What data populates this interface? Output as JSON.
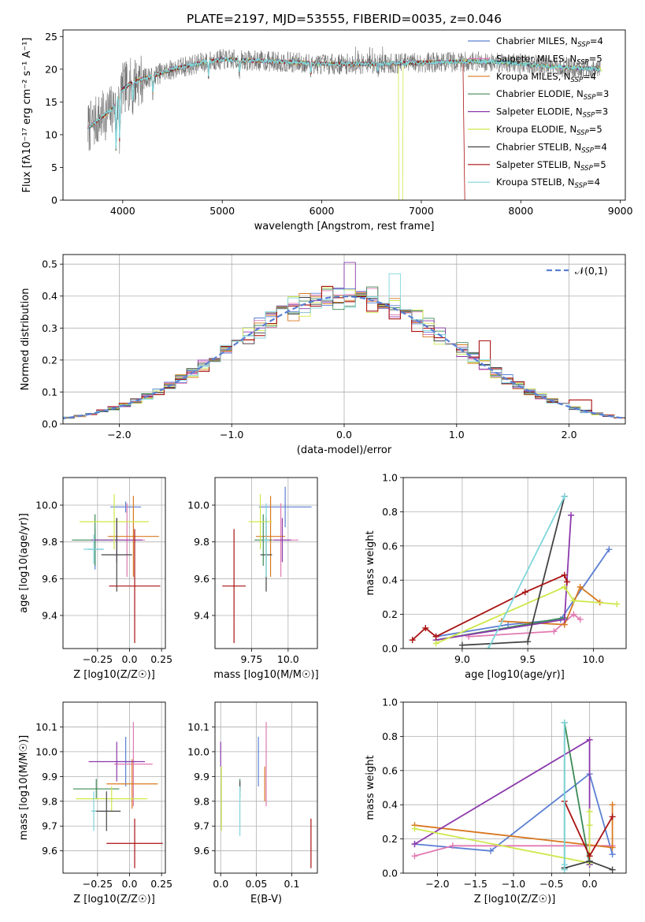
{
  "figure": {
    "title": "PLATE=2197, MJD=53555, FIBERID=0035, z=0.046"
  },
  "chart_data": [
    {
      "id": "spectrum",
      "type": "line",
      "xlabel": "wavelength [Angstrom, rest frame]",
      "ylabel": "Flux [fλ10⁻¹⁷ erg cm⁻² s⁻¹ A⁻¹]",
      "xlim": [
        3400,
        9050
      ],
      "ylim": [
        0,
        26
      ],
      "xticks": [
        4000,
        5000,
        6000,
        7000,
        8000,
        9000
      ],
      "yticks": [
        0,
        5,
        10,
        15,
        20,
        25
      ],
      "grid": false,
      "legend_position": "right",
      "series": [
        {
          "name": "Chabrier MILES, N_SSP=4",
          "color": "#5b7fd3"
        },
        {
          "name": "Salpeter MILES, N_SSP=5",
          "color": "#e07ab2"
        },
        {
          "name": "Kroupa MILES, N_SSP=4",
          "color": "#d87820"
        },
        {
          "name": "Chabrier ELODIE, N_SSP=3",
          "color": "#3c8a55"
        },
        {
          "name": "Salpeter ELODIE, N_SSP=3",
          "color": "#8c3aab"
        },
        {
          "name": "Kroupa ELODIE, N_SSP=5",
          "color": "#cde84b"
        },
        {
          "name": "Chabrier STELIB, N_SSP=4",
          "color": "#444444"
        },
        {
          "name": "Salpeter STELIB, N_SSP=5",
          "color": "#aa1111"
        },
        {
          "name": "Kroupa STELIB, N_SSP=4",
          "color": "#7fd6dc"
        }
      ],
      "continuum": {
        "x": [
          3650,
          3900,
          4000,
          4100,
          4300,
          4500,
          4800,
          5000,
          5500,
          6000,
          6500,
          7000,
          7500,
          7900,
          8300,
          8800
        ],
        "y": [
          11,
          14,
          17,
          18,
          19,
          20,
          21,
          21.5,
          21.2,
          20.8,
          20.8,
          21,
          21.2,
          21,
          20.4,
          20
        ]
      }
    },
    {
      "id": "residuals",
      "type": "histogram",
      "xlabel": "(data-model)/error",
      "ylabel": "Normed distribution",
      "xlim": [
        -2.5,
        2.5
      ],
      "ylim": [
        0,
        0.53
      ],
      "xticks": [
        -2,
        -1,
        0,
        1,
        2
      ],
      "yticks": [
        0.0,
        0.1,
        0.2,
        0.3,
        0.4,
        0.5
      ],
      "grid": true,
      "legend_position": "top-right",
      "legend_label": "𝒩(0,1)",
      "bin_width": 0.1
    },
    {
      "id": "age-vs-Z",
      "type": "scatter",
      "xlabel": "Z [log10(Z/Z☉)]",
      "ylabel": "age  [log10(age/yr)]",
      "xlim": [
        -0.52,
        0.28
      ],
      "ylim": [
        9.22,
        10.15
      ],
      "xticks": [
        -0.25,
        0.0,
        0.25
      ],
      "yticks": [
        9.4,
        9.6,
        9.8,
        10.0
      ],
      "grid": true,
      "points": [
        {
          "x": -0.27,
          "y": 9.76,
          "xerr": 0.06,
          "yerr": 0.11,
          "color": "#5b7fd3"
        },
        {
          "x": -0.03,
          "y": 9.99,
          "xerr": 0.12,
          "yerr": 0.03,
          "color": "#5b7fd3"
        },
        {
          "x": -0.02,
          "y": 9.81,
          "xerr": 0.14,
          "yerr": 0.2,
          "color": "#e07ab2"
        },
        {
          "x": 0.03,
          "y": 9.83,
          "xerr": 0.2,
          "yerr": 0.22,
          "color": "#d87820"
        },
        {
          "x": -0.27,
          "y": 9.81,
          "xerr": 0.18,
          "yerr": 0.14,
          "color": "#3c8a55"
        },
        {
          "x": -0.1,
          "y": 9.81,
          "xerr": 0.2,
          "yerr": 0.12,
          "color": "#8c3aab"
        },
        {
          "x": -0.12,
          "y": 9.91,
          "xerr": 0.27,
          "yerr": 0.15,
          "color": "#cde84b"
        },
        {
          "x": -0.1,
          "y": 9.73,
          "xerr": 0.12,
          "yerr": 0.2,
          "color": "#444444"
        },
        {
          "x": 0.04,
          "y": 9.56,
          "xerr": 0.2,
          "yerr": 0.31,
          "color": "#aa1111"
        },
        {
          "x": -0.28,
          "y": 9.76,
          "xerr": 0.08,
          "yerr": 0.08,
          "color": "#7fd6dc"
        }
      ]
    },
    {
      "id": "age-vs-mass",
      "type": "scatter",
      "xlabel": "mass [log10(M/M☉)]",
      "ylabel": "",
      "xlim": [
        9.5,
        10.2
      ],
      "ylim": [
        9.22,
        10.15
      ],
      "xticks": [
        9.75,
        10.0
      ],
      "yticks": [
        9.4,
        9.6,
        9.8,
        10.0
      ],
      "grid": true,
      "points": [
        {
          "x": 9.98,
          "y": 9.99,
          "xerr": 0.18,
          "yerr": 0.11,
          "color": "#5b7fd3"
        },
        {
          "x": 9.95,
          "y": 9.81,
          "xerr": 0.12,
          "yerr": 0.2,
          "color": "#e07ab2"
        },
        {
          "x": 9.88,
          "y": 9.83,
          "xerr": 0.1,
          "yerr": 0.22,
          "color": "#d87820"
        },
        {
          "x": 9.83,
          "y": 9.81,
          "xerr": 0.06,
          "yerr": 0.14,
          "color": "#3c8a55"
        },
        {
          "x": 9.96,
          "y": 9.81,
          "xerr": 0.06,
          "yerr": 0.12,
          "color": "#8c3aab"
        },
        {
          "x": 9.81,
          "y": 9.91,
          "xerr": 0.08,
          "yerr": 0.15,
          "color": "#cde84b"
        },
        {
          "x": 9.85,
          "y": 9.73,
          "xerr": 0.04,
          "yerr": 0.2,
          "color": "#444444"
        },
        {
          "x": 9.63,
          "y": 9.56,
          "xerr": 0.08,
          "yerr": 0.31,
          "color": "#aa1111"
        },
        {
          "x": 9.85,
          "y": 9.81,
          "xerr": 0.02,
          "yerr": 0.2,
          "color": "#7fd6dc"
        }
      ]
    },
    {
      "id": "massweight-vs-age",
      "type": "line",
      "xlabel": "age  [log10(age/yr)]",
      "ylabel": "mass weight",
      "xlim": [
        8.55,
        10.25
      ],
      "ylim": [
        0,
        1.0
      ],
      "xticks": [
        9.0,
        9.5,
        10.0
      ],
      "yticks": [
        0.0,
        0.2,
        0.4,
        0.6,
        0.8,
        1.0
      ],
      "grid": true,
      "series": [
        {
          "color": "#5b7fd3",
          "x": [
            8.8,
            9.35,
            9.75,
            10.12
          ],
          "y": [
            0.07,
            0.14,
            0.17,
            0.58
          ]
        },
        {
          "color": "#e07ab2",
          "x": [
            9.05,
            9.7,
            9.85,
            9.9
          ],
          "y": [
            0.07,
            0.1,
            0.2,
            0.17
          ]
        },
        {
          "color": "#d87820",
          "x": [
            9.3,
            9.78,
            9.9,
            10.05
          ],
          "y": [
            0.16,
            0.14,
            0.36,
            0.27
          ]
        },
        {
          "color": "#3c8a55",
          "x": [
            8.8,
            9.78
          ],
          "y": [
            0.05,
            0.18
          ]
        },
        {
          "color": "#8c3aab",
          "x": [
            8.8,
            9.78,
            9.83
          ],
          "y": [
            0.05,
            0.17,
            0.78
          ]
        },
        {
          "color": "#cde84b",
          "x": [
            8.8,
            9.78,
            9.85,
            10.18
          ],
          "y": [
            0.03,
            0.36,
            0.28,
            0.26
          ]
        },
        {
          "color": "#444444",
          "x": [
            9.0,
            9.5,
            9.78
          ],
          "y": [
            0.02,
            0.04,
            0.89
          ]
        },
        {
          "color": "#aa1111",
          "x": [
            8.62,
            8.72,
            8.8,
            9.48,
            9.78,
            9.8
          ],
          "y": [
            0.05,
            0.12,
            0.07,
            0.33,
            0.43,
            0.39
          ]
        },
        {
          "color": "#7fd6dc",
          "x": [
            9.2,
            9.78
          ],
          "y": [
            0.0,
            0.89
          ]
        }
      ]
    },
    {
      "id": "mass-vs-Z",
      "type": "scatter",
      "xlabel": "Z [log10(Z/Z☉)]",
      "ylabel": "mass [log10(M/M☉)]",
      "xlim": [
        -0.52,
        0.28
      ],
      "ylim": [
        9.51,
        10.2
      ],
      "xticks": [
        -0.25,
        0.0,
        0.25
      ],
      "yticks": [
        9.6,
        9.7,
        9.8,
        9.9,
        10.0,
        10.1
      ],
      "grid": true,
      "points": [
        {
          "x": -0.03,
          "y": 9.96,
          "xerr": 0.08,
          "yerr": 0.1,
          "color": "#5b7fd3"
        },
        {
          "x": 0.03,
          "y": 9.95,
          "xerr": 0.15,
          "yerr": 0.17,
          "color": "#e07ab2"
        },
        {
          "x": 0.02,
          "y": 9.87,
          "xerr": 0.2,
          "yerr": 0.1,
          "color": "#d87820"
        },
        {
          "x": -0.26,
          "y": 9.85,
          "xerr": 0.18,
          "yerr": 0.04,
          "color": "#3c8a55"
        },
        {
          "x": -0.1,
          "y": 9.96,
          "xerr": 0.22,
          "yerr": 0.08,
          "color": "#8c3aab"
        },
        {
          "x": -0.14,
          "y": 9.81,
          "xerr": 0.28,
          "yerr": 0.05,
          "color": "#cde84b"
        },
        {
          "x": -0.18,
          "y": 9.76,
          "xerr": 0.11,
          "yerr": 0.08,
          "color": "#444444"
        },
        {
          "x": 0.04,
          "y": 9.63,
          "xerr": 0.22,
          "yerr": 0.1,
          "color": "#aa1111"
        },
        {
          "x": -0.28,
          "y": 9.76,
          "xerr": 0.02,
          "yerr": 0.08,
          "color": "#7fd6dc"
        }
      ]
    },
    {
      "id": "mass-vs-EBV",
      "type": "scatter",
      "xlabel": "E(B-V)",
      "ylabel": "",
      "xlim": [
        -0.008,
        0.136
      ],
      "ylim": [
        9.51,
        10.2
      ],
      "xticks": [
        0.0,
        0.05,
        0.1
      ],
      "yticks": [
        9.6,
        9.7,
        9.8,
        9.9,
        10.0,
        10.1
      ],
      "grid": true,
      "points": [
        {
          "x": 0.053,
          "y": 9.96,
          "xerr": 0,
          "yerr": 0.1,
          "color": "#5b7fd3"
        },
        {
          "x": 0.064,
          "y": 9.95,
          "xerr": 0,
          "yerr": 0.17,
          "color": "#e07ab2"
        },
        {
          "x": 0.062,
          "y": 9.87,
          "xerr": 0,
          "yerr": 0.07,
          "color": "#d87820"
        },
        {
          "x": 0.027,
          "y": 9.85,
          "xerr": 0,
          "yerr": 0.04,
          "color": "#3c8a55"
        },
        {
          "x": 0.0,
          "y": 9.99,
          "xerr": 0,
          "yerr": 0.05,
          "color": "#8c3aab"
        },
        {
          "x": 0.001,
          "y": 9.81,
          "xerr": 0,
          "yerr": 0.13,
          "color": "#cde84b"
        },
        {
          "x": 0.027,
          "y": 9.86,
          "xerr": 0,
          "yerr": 0.02,
          "color": "#444444"
        },
        {
          "x": 0.127,
          "y": 9.63,
          "xerr": 0,
          "yerr": 0.1,
          "color": "#aa1111"
        },
        {
          "x": 0.027,
          "y": 9.76,
          "xerr": 0,
          "yerr": 0.1,
          "color": "#7fd6dc"
        }
      ]
    },
    {
      "id": "massweight-vs-Z",
      "type": "line",
      "xlabel": "Z [log10(Z/Z☉)]",
      "ylabel": "mass weight",
      "xlim": [
        -2.45,
        0.48
      ],
      "ylim": [
        0,
        1.0
      ],
      "xticks": [
        -2.0,
        -1.5,
        -1.0,
        -0.5,
        0.0
      ],
      "xtick_labels": [
        "−2.0",
        "−1.5",
        "−1.0",
        "−0.5",
        "0.0"
      ],
      "yticks": [
        0.0,
        0.2,
        0.4,
        0.6,
        0.8,
        1.0
      ],
      "grid": true,
      "series": [
        {
          "color": "#5b7fd3",
          "x": [
            -2.3,
            -1.3,
            0.0,
            0.3
          ],
          "y": [
            0.17,
            0.13,
            0.58,
            0.11
          ]
        },
        {
          "color": "#e07ab2",
          "x": [
            -2.3,
            -1.8,
            0.0,
            0.3
          ],
          "y": [
            0.1,
            0.16,
            0.16,
            0.16
          ]
        },
        {
          "color": "#d87820",
          "x": [
            -2.3,
            0.3,
            0.3
          ],
          "y": [
            0.28,
            0.15,
            0.4
          ]
        },
        {
          "color": "#3c8a55",
          "x": [
            -0.33,
            -0.33,
            0.0
          ],
          "y": [
            0.03,
            0.88,
            0.05
          ]
        },
        {
          "color": "#8c3aab",
          "x": [
            -2.3,
            0.0,
            0.0
          ],
          "y": [
            0.17,
            0.78,
            0.05
          ]
        },
        {
          "color": "#cde84b",
          "x": [
            -2.3,
            0.0,
            0.0,
            0.0
          ],
          "y": [
            0.26,
            0.06,
            0.36,
            0.28
          ]
        },
        {
          "color": "#444444",
          "x": [
            -0.33,
            0.0,
            0.3
          ],
          "y": [
            0.03,
            0.07,
            0.02
          ]
        },
        {
          "color": "#aa1111",
          "x": [
            -0.33,
            0.0,
            0.3
          ],
          "y": [
            0.42,
            0.1,
            0.33
          ]
        },
        {
          "color": "#7fd6dc",
          "x": [
            -0.33,
            -0.33,
            -0.33
          ],
          "y": [
            0.02,
            0.88,
            0.05
          ]
        }
      ]
    }
  ]
}
